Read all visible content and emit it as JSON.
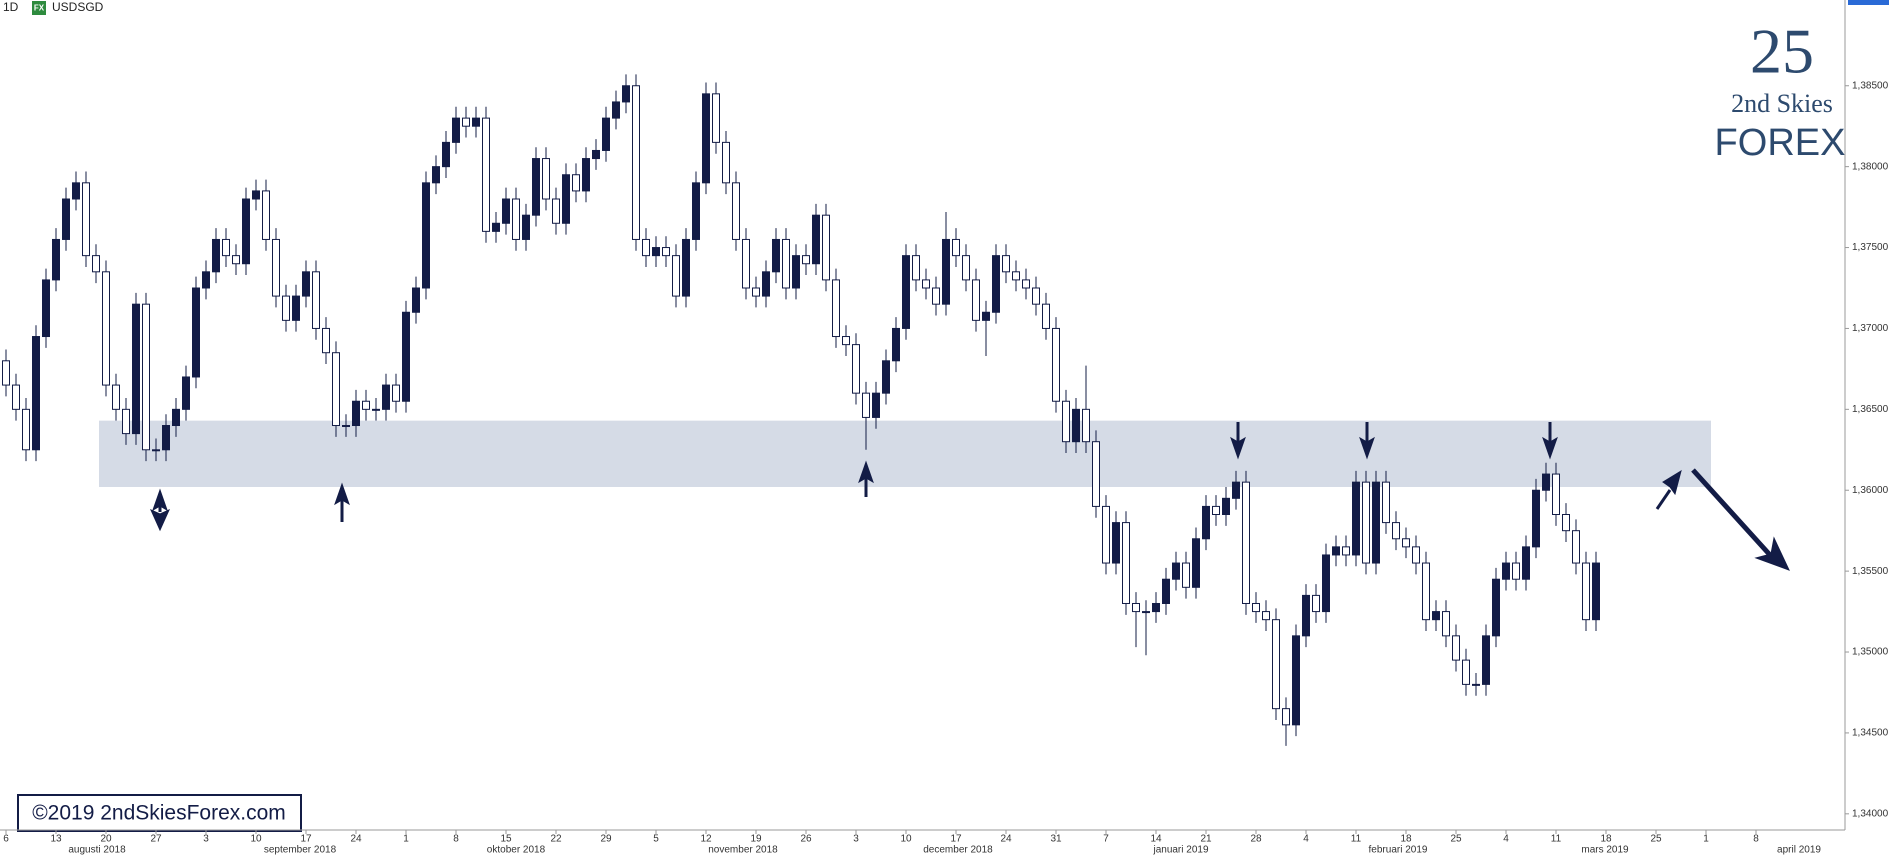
{
  "header": {
    "interval": "1D",
    "badge": "FX",
    "symbol": "USDSGD"
  },
  "logo": {
    "mark": "25",
    "line1": "2nd Skies",
    "line2": "FOREX"
  },
  "copyright": "©2019 2ndSkiesForex.com",
  "chart_data": {
    "type": "candlestick",
    "bull_color": "#131c46",
    "bear_color": "#ffffff",
    "zone_color": "#d5dbe6",
    "arrow_color": "#131c46",
    "zone": [
      1.3602,
      1.3643
    ],
    "ylim": [
      1.339,
      1.3903
    ],
    "yticks": [
      {
        "value": 1.34,
        "label": "1,34000"
      },
      {
        "value": 1.345,
        "label": "1,34500"
      },
      {
        "value": 1.35,
        "label": "1,35000"
      },
      {
        "value": 1.355,
        "label": "1,35500"
      },
      {
        "value": 1.36,
        "label": "1,36000"
      },
      {
        "value": 1.365,
        "label": "1,36500"
      },
      {
        "value": 1.37,
        "label": "1,37000"
      },
      {
        "value": 1.375,
        "label": "1,37500"
      },
      {
        "value": 1.38,
        "label": "1,38000"
      },
      {
        "value": 1.385,
        "label": "1,38500"
      }
    ],
    "day_labels": [
      "6",
      "13",
      "20",
      "27",
      "3",
      "10",
      "17",
      "24",
      "1",
      "8",
      "15",
      "22",
      "29",
      "5",
      "12",
      "19",
      "26",
      "3",
      "10",
      "17",
      "24",
      "31",
      "7",
      "14",
      "21",
      "28",
      "4",
      "11",
      "18",
      "25",
      "4",
      "11",
      "18",
      "25",
      "1",
      "8"
    ],
    "month_labels": [
      "augusti 2018",
      "september 2018",
      "oktober 2018",
      "november 2018",
      "december 2018",
      "januari 2019",
      "februari 2019",
      "mars 2019",
      "april 2019"
    ],
    "open": [
      1.368,
      1.3665,
      1.365,
      1.3625,
      1.3695,
      1.373,
      1.3755,
      1.378,
      1.379,
      1.3745,
      1.3735,
      1.3665,
      1.365,
      1.3635,
      1.3715,
      1.3625,
      1.3625,
      1.364,
      1.365,
      1.367,
      1.3725,
      1.3735,
      1.3755,
      1.3745,
      1.374,
      1.378,
      1.3785,
      1.3755,
      1.372,
      1.3705,
      1.372,
      1.3735,
      1.37,
      1.3685,
      1.364,
      1.364,
      1.3655,
      1.365,
      1.365,
      1.3665,
      1.3655,
      1.371,
      1.3725,
      1.379,
      1.38,
      1.3815,
      1.383,
      1.3825,
      1.383,
      1.376,
      1.3765,
      1.378,
      1.3755,
      1.377,
      1.3805,
      1.378,
      1.3765,
      1.3795,
      1.3785,
      1.3805,
      1.381,
      1.383,
      1.384,
      1.385,
      1.3755,
      1.3745,
      1.375,
      1.3745,
      1.372,
      1.3755,
      1.379,
      1.3845,
      1.3815,
      1.379,
      1.3755,
      1.3725,
      1.372,
      1.3735,
      1.3755,
      1.3725,
      1.3745,
      1.374,
      1.377,
      1.373,
      1.3695,
      1.369,
      1.366,
      1.3645,
      1.366,
      1.368,
      1.37,
      1.3745,
      1.373,
      1.3725,
      1.3715,
      1.3755,
      1.3745,
      1.373,
      1.3705,
      1.371,
      1.3745,
      1.3735,
      1.373,
      1.3725,
      1.3715,
      1.37,
      1.3655,
      1.363,
      1.365,
      1.363,
      1.359,
      1.3555,
      1.358,
      1.353,
      1.3525,
      1.3525,
      1.353,
      1.3545,
      1.3555,
      1.354,
      1.357,
      1.359,
      1.3585,
      1.3595,
      1.3605,
      1.353,
      1.3525,
      1.352,
      1.3465,
      1.3455,
      1.351,
      1.3535,
      1.3525,
      1.356,
      1.3565,
      1.356,
      1.3605,
      1.3555,
      1.3605,
      1.358,
      1.357,
      1.3565,
      1.3555,
      1.352,
      1.3525,
      1.351,
      1.3495,
      1.348,
      1.348,
      1.351,
      1.3545,
      1.3555,
      1.3545,
      1.3565,
      1.36,
      1.361,
      1.3585,
      1.3575,
      1.3555,
      1.352
    ],
    "high": [
      1.3687,
      1.3672,
      1.3657,
      1.3702,
      1.3737,
      1.3762,
      1.3787,
      1.3797,
      1.3797,
      1.3752,
      1.3742,
      1.3672,
      1.3657,
      1.3722,
      1.3722,
      1.3632,
      1.3647,
      1.3657,
      1.3677,
      1.3732,
      1.3742,
      1.3762,
      1.3762,
      1.3752,
      1.3787,
      1.3792,
      1.3792,
      1.3762,
      1.3727,
      1.3727,
      1.3742,
      1.3742,
      1.3707,
      1.3692,
      1.3647,
      1.3662,
      1.3662,
      1.3657,
      1.3672,
      1.3672,
      1.3717,
      1.3732,
      1.3797,
      1.3807,
      1.3822,
      1.3837,
      1.3837,
      1.3837,
      1.3837,
      1.3772,
      1.3787,
      1.3787,
      1.3777,
      1.3812,
      1.3812,
      1.3787,
      1.3802,
      1.3802,
      1.3812,
      1.3817,
      1.3837,
      1.3847,
      1.3857,
      1.3857,
      1.3762,
      1.3757,
      1.3757,
      1.3752,
      1.3762,
      1.3797,
      1.3852,
      1.3852,
      1.3822,
      1.3797,
      1.3762,
      1.3732,
      1.3742,
      1.3762,
      1.3762,
      1.3752,
      1.3752,
      1.3777,
      1.3777,
      1.3737,
      1.3702,
      1.3697,
      1.3667,
      1.3667,
      1.3687,
      1.3707,
      1.3752,
      1.3752,
      1.3737,
      1.3732,
      1.3772,
      1.3762,
      1.3752,
      1.3737,
      1.3717,
      1.3752,
      1.3752,
      1.3742,
      1.3737,
      1.3732,
      1.3722,
      1.3707,
      1.3662,
      1.3657,
      1.3677,
      1.3637,
      1.3597,
      1.3587,
      1.3587,
      1.3537,
      1.3532,
      1.3537,
      1.3552,
      1.3562,
      1.3562,
      1.3577,
      1.3597,
      1.3597,
      1.3602,
      1.3612,
      1.3612,
      1.3537,
      1.3532,
      1.3527,
      1.3472,
      1.3517,
      1.3542,
      1.3542,
      1.3567,
      1.3572,
      1.3572,
      1.3612,
      1.3612,
      1.3612,
      1.3612,
      1.3587,
      1.3577,
      1.3572,
      1.3562,
      1.3532,
      1.3532,
      1.3517,
      1.3502,
      1.3487,
      1.3517,
      1.3552,
      1.3562,
      1.3562,
      1.3572,
      1.3607,
      1.3617,
      1.3617,
      1.3592,
      1.3582,
      1.3562,
      1.3562
    ],
    "low": [
      1.3658,
      1.3643,
      1.3618,
      1.3618,
      1.3688,
      1.3723,
      1.3748,
      1.3773,
      1.3738,
      1.3728,
      1.3658,
      1.3643,
      1.3628,
      1.3628,
      1.3618,
      1.3618,
      1.3618,
      1.3633,
      1.3643,
      1.3663,
      1.3718,
      1.3728,
      1.3738,
      1.3733,
      1.3733,
      1.3773,
      1.3748,
      1.3713,
      1.3698,
      1.3698,
      1.3713,
      1.3693,
      1.3678,
      1.3633,
      1.3633,
      1.3633,
      1.3643,
      1.3643,
      1.3643,
      1.3648,
      1.3648,
      1.3703,
      1.3718,
      1.3783,
      1.3793,
      1.3808,
      1.3818,
      1.3818,
      1.3753,
      1.3753,
      1.3758,
      1.3748,
      1.3748,
      1.3763,
      1.3773,
      1.3758,
      1.3758,
      1.3778,
      1.3778,
      1.3798,
      1.3803,
      1.3823,
      1.3833,
      1.3748,
      1.3738,
      1.3738,
      1.3738,
      1.3713,
      1.3713,
      1.3748,
      1.3783,
      1.3808,
      1.3783,
      1.3748,
      1.3718,
      1.3713,
      1.3713,
      1.3728,
      1.3718,
      1.3718,
      1.3733,
      1.3733,
      1.3723,
      1.3688,
      1.3683,
      1.3653,
      1.3625,
      1.3638,
      1.3653,
      1.3673,
      1.3693,
      1.3723,
      1.3718,
      1.3708,
      1.3708,
      1.3738,
      1.3723,
      1.3698,
      1.3683,
      1.3703,
      1.3728,
      1.3723,
      1.3718,
      1.3708,
      1.3693,
      1.3648,
      1.3623,
      1.3623,
      1.3623,
      1.3583,
      1.3548,
      1.3548,
      1.3523,
      1.3503,
      1.3498,
      1.3518,
      1.3523,
      1.3538,
      1.3533,
      1.3533,
      1.3563,
      1.3578,
      1.3578,
      1.3588,
      1.3523,
      1.3518,
      1.3513,
      1.3458,
      1.3442,
      1.3448,
      1.3503,
      1.3518,
      1.3518,
      1.3553,
      1.3553,
      1.3553,
      1.3548,
      1.3548,
      1.3573,
      1.3563,
      1.3558,
      1.3548,
      1.3513,
      1.3513,
      1.3503,
      1.3488,
      1.3473,
      1.3473,
      1.3473,
      1.3503,
      1.3538,
      1.3538,
      1.3538,
      1.3558,
      1.3593,
      1.3578,
      1.3568,
      1.3548,
      1.3513,
      1.3513
    ],
    "close": [
      1.3665,
      1.365,
      1.3625,
      1.3695,
      1.373,
      1.3755,
      1.378,
      1.379,
      1.3745,
      1.3735,
      1.3665,
      1.365,
      1.3635,
      1.3715,
      1.3625,
      1.3625,
      1.364,
      1.365,
      1.367,
      1.3725,
      1.3735,
      1.3755,
      1.3745,
      1.374,
      1.378,
      1.3785,
      1.3755,
      1.372,
      1.3705,
      1.372,
      1.3735,
      1.37,
      1.3685,
      1.364,
      1.364,
      1.3655,
      1.365,
      1.365,
      1.3665,
      1.3655,
      1.371,
      1.3725,
      1.379,
      1.38,
      1.3815,
      1.383,
      1.3825,
      1.383,
      1.376,
      1.3765,
      1.378,
      1.3755,
      1.377,
      1.3805,
      1.378,
      1.3765,
      1.3795,
      1.3785,
      1.3805,
      1.381,
      1.383,
      1.384,
      1.385,
      1.3755,
      1.3745,
      1.375,
      1.3745,
      1.372,
      1.3755,
      1.379,
      1.3845,
      1.3815,
      1.379,
      1.3755,
      1.3725,
      1.372,
      1.3735,
      1.3755,
      1.3725,
      1.3745,
      1.374,
      1.377,
      1.373,
      1.3695,
      1.369,
      1.366,
      1.3645,
      1.366,
      1.368,
      1.37,
      1.3745,
      1.373,
      1.3725,
      1.3715,
      1.3755,
      1.3745,
      1.373,
      1.3705,
      1.371,
      1.3745,
      1.3735,
      1.373,
      1.3725,
      1.3715,
      1.37,
      1.3655,
      1.363,
      1.365,
      1.363,
      1.359,
      1.3555,
      1.358,
      1.353,
      1.3525,
      1.3525,
      1.353,
      1.3545,
      1.3555,
      1.354,
      1.357,
      1.359,
      1.3585,
      1.3595,
      1.3605,
      1.353,
      1.3525,
      1.352,
      1.3465,
      1.3455,
      1.351,
      1.3535,
      1.3525,
      1.356,
      1.3565,
      1.356,
      1.3605,
      1.3555,
      1.3605,
      1.358,
      1.357,
      1.3565,
      1.3555,
      1.352,
      1.3525,
      1.351,
      1.3495,
      1.348,
      1.348,
      1.351,
      1.3545,
      1.3555,
      1.3545,
      1.3565,
      1.36,
      1.361,
      1.3585,
      1.3575,
      1.3555,
      1.352,
      1.3555
    ]
  }
}
